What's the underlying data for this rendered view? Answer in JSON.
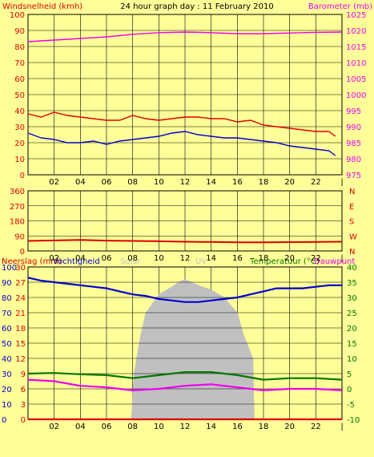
{
  "header": {
    "left_label": "Windsnelheid (kmh)",
    "title": "24 hour graph day : 11 February 2010",
    "right_label": "Barometer (mb)"
  },
  "colors": {
    "background": "#ffff99",
    "gust": "#dd0000",
    "wind": "#0000cc",
    "barometer": "#ee00ee",
    "direction": "#dd0000",
    "humidity": "#0000cc",
    "temperature": "#007700",
    "dewpoint": "#ee00ee",
    "rain": "#dd0000",
    "uv": "#c0c0c0",
    "solar": "#c0c0c0"
  },
  "x_ticks": [
    "02",
    "04",
    "06",
    "08",
    "10",
    "12",
    "14",
    "16",
    "18",
    "20",
    "22",
    "|"
  ],
  "chart_data": [
    {
      "type": "line",
      "ylim": [
        0,
        100
      ],
      "y_ticks_left": [
        "0",
        "10",
        "20",
        "30",
        "40",
        "50",
        "60",
        "70",
        "80",
        "90",
        "100"
      ],
      "y2lim": [
        975,
        1025
      ],
      "y_ticks_right": [
        "975",
        "980",
        "985",
        "990",
        "995",
        "1000",
        "1005",
        "1010",
        "1015",
        "1020",
        "1025"
      ],
      "xlim": [
        0,
        24
      ],
      "series": [
        {
          "name": "Windsnelheid (kmh)",
          "axis": "left",
          "x": [
            0,
            1,
            2,
            3,
            4,
            5,
            6,
            7,
            8,
            9,
            10,
            11,
            12,
            13,
            14,
            15,
            16,
            17,
            18,
            19,
            20,
            21,
            22,
            23,
            23.5
          ],
          "values": [
            38,
            36,
            39,
            37,
            36,
            35,
            34,
            34,
            37,
            35,
            34,
            35,
            36,
            36,
            35,
            35,
            33,
            34,
            31,
            30,
            29,
            28,
            27,
            27,
            24
          ]
        },
        {
          "name": "Windsnelheid (kmh)",
          "axis": "left",
          "x": [
            0,
            1,
            2,
            3,
            4,
            5,
            6,
            7,
            8,
            9,
            10,
            11,
            12,
            13,
            14,
            15,
            16,
            17,
            18,
            19,
            20,
            21,
            22,
            23,
            23.5
          ],
          "values": [
            26,
            23,
            22,
            20,
            20,
            21,
            19,
            21,
            22,
            23,
            24,
            26,
            27,
            25,
            24,
            23,
            23,
            22,
            21,
            20,
            18,
            17,
            16,
            15,
            12
          ]
        },
        {
          "name": "Barometer (mb)",
          "axis": "right",
          "x": [
            0,
            2,
            4,
            6,
            8,
            10,
            12,
            14,
            16,
            18,
            20,
            22,
            24
          ],
          "values": [
            1016.5,
            1017,
            1017.5,
            1018,
            1018.8,
            1019.3,
            1019.5,
            1019.3,
            1019,
            1019,
            1019.2,
            1019.4,
            1019.5
          ]
        }
      ]
    },
    {
      "type": "line",
      "ylim": [
        0,
        360
      ],
      "y_ticks_left": [
        "0",
        "90",
        "180",
        "270",
        "360"
      ],
      "y_ticks_right": [
        "N",
        "E",
        "S",
        "W",
        "N"
      ],
      "xlim": [
        0,
        24
      ],
      "series": [
        {
          "x": [
            0,
            2,
            4,
            6,
            8,
            10,
            12,
            14,
            16,
            18,
            20,
            22,
            24
          ],
          "values": [
            60,
            63,
            66,
            62,
            60,
            58,
            55,
            54,
            52,
            52,
            53,
            54,
            55
          ]
        }
      ]
    },
    {
      "type": "area",
      "legend": [
        "Neerslag (mm)",
        "Vochtigheid",
        "Solar",
        "UV",
        "Temperatuur (°C)",
        "Dauwpunt"
      ],
      "ylim": [
        0,
        100
      ],
      "y_ticks_left_outer": [
        "0",
        "10",
        "20",
        "30",
        "40",
        "50",
        "60",
        "70",
        "80",
        "90",
        "100"
      ],
      "y_ticks_left_inner": [
        "0",
        "3",
        "6",
        "9",
        "12",
        "15",
        "18",
        "21",
        "24",
        "27",
        "30"
      ],
      "y2lim": [
        -10,
        40
      ],
      "y_ticks_right": [
        "-10",
        "-5",
        "0",
        "5",
        "10",
        "15",
        "20",
        "25",
        "30",
        "35",
        "40"
      ],
      "xlim": [
        0,
        24
      ],
      "series": [
        {
          "name": "Vochtigheid",
          "axis": "left",
          "x": [
            0,
            1,
            2,
            3,
            4,
            5,
            6,
            7,
            8,
            9,
            10,
            11,
            12,
            13,
            14,
            15,
            16,
            17,
            18,
            19,
            20,
            21,
            22,
            23,
            24
          ],
          "values": [
            93,
            91,
            90,
            89,
            88,
            87,
            86,
            84,
            82,
            81,
            79,
            78,
            77,
            77,
            78,
            79,
            80,
            82,
            84,
            86,
            86,
            86,
            87,
            88,
            88
          ]
        },
        {
          "name": "Temperatuur (°C)",
          "axis": "right",
          "x": [
            0,
            2,
            4,
            6,
            8,
            10,
            12,
            14,
            16,
            18,
            20,
            22,
            24
          ],
          "values": [
            5,
            5.2,
            4.8,
            4.5,
            3.5,
            4.5,
            5.5,
            5.5,
            4.5,
            3.0,
            3.5,
            3.5,
            3.0
          ]
        },
        {
          "name": "Dauwpunt",
          "axis": "right",
          "x": [
            0,
            2,
            4,
            6,
            8,
            10,
            12,
            14,
            16,
            18,
            20,
            22,
            24
          ],
          "values": [
            3,
            2.5,
            1,
            0.5,
            -0.5,
            0,
            1,
            1.5,
            0.5,
            -0.5,
            0,
            0,
            -0.5
          ]
        },
        {
          "name": "Neerslag (mm)",
          "axis": "left",
          "x": [
            0,
            24
          ],
          "values": [
            0,
            0
          ]
        },
        {
          "name": "Solar",
          "axis": "left",
          "x": [
            0,
            7.9,
            8.1,
            8.6,
            9,
            10,
            11,
            11.5,
            12,
            13,
            14,
            15,
            16,
            16.5,
            17.2,
            17.3,
            24
          ],
          "values": [
            0,
            0,
            30,
            55,
            70,
            82,
            87,
            90,
            92,
            88,
            85,
            80,
            70,
            55,
            40,
            0,
            0
          ]
        }
      ]
    }
  ]
}
